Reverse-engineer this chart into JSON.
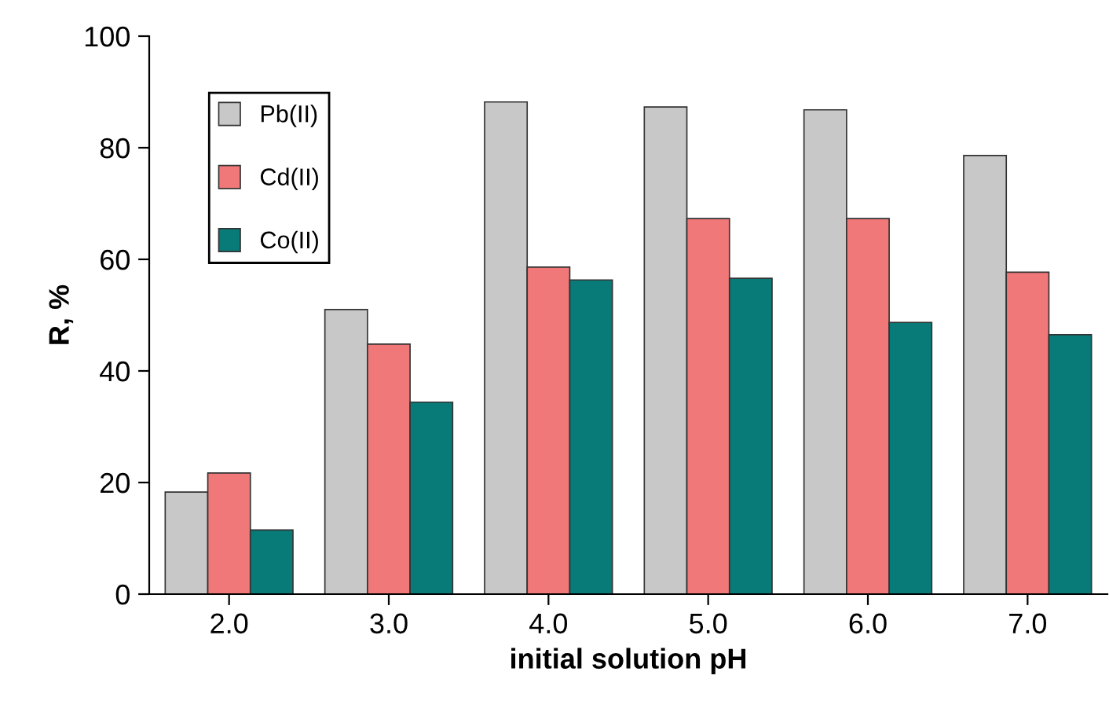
{
  "chart_data": {
    "type": "bar",
    "xlabel": "initial solution pH",
    "ylabel": "R, %",
    "categories": [
      "2.0",
      "3.0",
      "4.0",
      "5.0",
      "6.0",
      "7.0"
    ],
    "series": [
      {
        "name": "Pb(II)",
        "color": "#c8c8c8",
        "values": [
          18.3,
          51,
          88.2,
          87.3,
          86.8,
          78.6
        ]
      },
      {
        "name": "Cd(II)",
        "color": "#f07878",
        "values": [
          21.7,
          44.8,
          58.6,
          67.3,
          67.3,
          57.7
        ]
      },
      {
        "name": "Co(II)",
        "color": "#087a78",
        "values": [
          11.5,
          34.4,
          56.3,
          56.6,
          48.7,
          46.5
        ]
      }
    ],
    "ylim": [
      0,
      100
    ],
    "yticks": [
      0,
      20,
      40,
      60,
      80,
      100
    ],
    "grid": false,
    "legend": "top left"
  }
}
